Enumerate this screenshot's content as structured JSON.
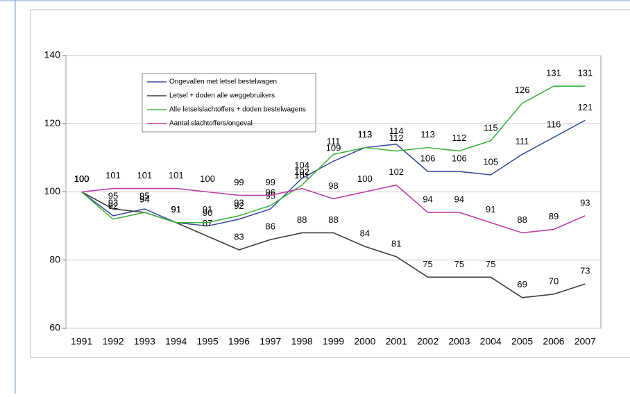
{
  "chart_data": {
    "type": "line",
    "categories": [
      "1991",
      "1992",
      "1993",
      "1994",
      "1995",
      "1996",
      "1997",
      "1998",
      "1999",
      "2000",
      "2001",
      "2002",
      "2003",
      "2004",
      "2005",
      "2006",
      "2007"
    ],
    "series": [
      {
        "name": "Ongevallen met letsel bestelwagen",
        "color": "#3a4fa0",
        "values": [
          100,
          93,
          95,
          91,
          90,
          92,
          95,
          104,
          109,
          113,
          114,
          106,
          106,
          105,
          111,
          116,
          121
        ]
      },
      {
        "name": "Letsel + doden alle weggebruikers",
        "color": "#3c3c3c",
        "values": [
          100,
          95,
          94,
          91,
          87,
          83,
          86,
          88,
          88,
          84,
          81,
          75,
          75,
          75,
          69,
          70,
          73
        ]
      },
      {
        "name": "Alle letselslachtoffers + doden bestelwagens",
        "color": "#3fb43f",
        "values": [
          100,
          92,
          94,
          91,
          91,
          93,
          96,
          102,
          111,
          113,
          112,
          113,
          112,
          115,
          126,
          131,
          131
        ]
      },
      {
        "name": "Aantal slachtoffers/ongeval",
        "color": "#c040a8",
        "values": [
          100,
          101,
          101,
          101,
          100,
          99,
          99,
          101,
          98,
          100,
          102,
          94,
          94,
          91,
          88,
          89,
          93
        ]
      }
    ],
    "ylim": [
      60,
      140
    ],
    "yticks": [
      60,
      80,
      100,
      120,
      140
    ],
    "grid": true
  }
}
